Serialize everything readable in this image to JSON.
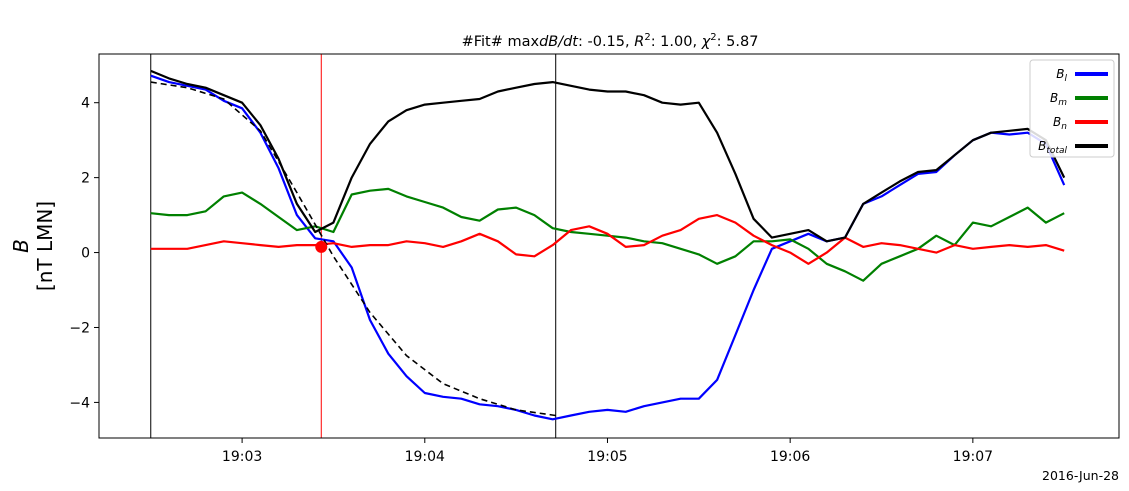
{
  "chart_data": {
    "type": "line",
    "title_parts": {
      "prefix": "#Fit# max",
      "dbdt": "dB/dt",
      "after_dbdt": ": -0.15, ",
      "r": "R",
      "r_sup": "2",
      "after_r": ": 1.00, ",
      "chi": "χ",
      "chi_sup": "2",
      "after_chi": ": 5.87"
    },
    "ylabel_var": "B",
    "ylabel_units": "[nT LMN]",
    "date_label": "2016-Jun-28",
    "ylim": [
      -4.95,
      5.3
    ],
    "xlim": [
      "19:02:13",
      "19:07:48"
    ],
    "yticks": [
      4,
      2,
      0,
      -2,
      -4
    ],
    "ytick_labels": [
      "4",
      "2",
      "0",
      "−2",
      "−4"
    ],
    "xticks": [
      "19:03",
      "19:04",
      "19:05",
      "19:06",
      "19:07"
    ],
    "grid": false,
    "legend_position": "top-right",
    "vertical_lines": [
      {
        "t": "19:02:30",
        "color": "#000000"
      },
      {
        "t": "19:03:26",
        "color": "#ff0000"
      },
      {
        "t": "19:04:43",
        "color": "#000000"
      }
    ],
    "marker": {
      "t": "19:03:26",
      "value": 0.15,
      "color": "#ff0000"
    },
    "series": [
      {
        "name": "Bl",
        "label_main": "B",
        "label_sub": "l",
        "color": "#0000ff",
        "points": [
          [
            "19:02:30",
            4.72
          ],
          [
            "19:02:36",
            4.55
          ],
          [
            "19:02:42",
            4.45
          ],
          [
            "19:02:48",
            4.35
          ],
          [
            "19:02:54",
            4.05
          ],
          [
            "19:03:00",
            3.85
          ],
          [
            "19:03:06",
            3.2
          ],
          [
            "19:03:12",
            2.25
          ],
          [
            "19:03:18",
            1.0
          ],
          [
            "19:03:24",
            0.38
          ],
          [
            "19:03:30",
            0.3
          ],
          [
            "19:03:36",
            -0.4
          ],
          [
            "19:03:42",
            -1.8
          ],
          [
            "19:03:48",
            -2.7
          ],
          [
            "19:03:54",
            -3.3
          ],
          [
            "19:04:00",
            -3.75
          ],
          [
            "19:04:06",
            -3.85
          ],
          [
            "19:04:12",
            -3.9
          ],
          [
            "19:04:18",
            -4.05
          ],
          [
            "19:04:24",
            -4.1
          ],
          [
            "19:04:30",
            -4.2
          ],
          [
            "19:04:36",
            -4.35
          ],
          [
            "19:04:42",
            -4.45
          ],
          [
            "19:04:48",
            -4.35
          ],
          [
            "19:04:54",
            -4.25
          ],
          [
            "19:05:00",
            -4.2
          ],
          [
            "19:05:06",
            -4.25
          ],
          [
            "19:05:12",
            -4.1
          ],
          [
            "19:05:18",
            -4.0
          ],
          [
            "19:05:24",
            -3.9
          ],
          [
            "19:05:30",
            -3.9
          ],
          [
            "19:05:36",
            -3.4
          ],
          [
            "19:05:42",
            -2.2
          ],
          [
            "19:05:48",
            -1.0
          ],
          [
            "19:05:54",
            0.1
          ],
          [
            "19:06:00",
            0.3
          ],
          [
            "19:06:06",
            0.5
          ],
          [
            "19:06:12",
            0.3
          ],
          [
            "19:06:18",
            0.4
          ],
          [
            "19:06:24",
            1.3
          ],
          [
            "19:06:30",
            1.5
          ],
          [
            "19:06:36",
            1.8
          ],
          [
            "19:06:42",
            2.1
          ],
          [
            "19:06:48",
            2.15
          ],
          [
            "19:06:54",
            2.6
          ],
          [
            "19:07:00",
            3.0
          ],
          [
            "19:07:06",
            3.2
          ],
          [
            "19:07:12",
            3.15
          ],
          [
            "19:07:18",
            3.2
          ],
          [
            "19:07:24",
            2.9
          ],
          [
            "19:07:30",
            1.8
          ]
        ]
      },
      {
        "name": "Bm",
        "label_main": "B",
        "label_sub": "m",
        "color": "#008000",
        "points": [
          [
            "19:02:30",
            1.05
          ],
          [
            "19:02:36",
            1.0
          ],
          [
            "19:02:42",
            1.0
          ],
          [
            "19:02:48",
            1.1
          ],
          [
            "19:02:54",
            1.5
          ],
          [
            "19:03:00",
            1.6
          ],
          [
            "19:03:06",
            1.3
          ],
          [
            "19:03:12",
            0.95
          ],
          [
            "19:03:18",
            0.6
          ],
          [
            "19:03:24",
            0.7
          ],
          [
            "19:03:30",
            0.55
          ],
          [
            "19:03:36",
            1.55
          ],
          [
            "19:03:42",
            1.65
          ],
          [
            "19:03:48",
            1.7
          ],
          [
            "19:03:54",
            1.5
          ],
          [
            "19:04:00",
            1.35
          ],
          [
            "19:04:06",
            1.2
          ],
          [
            "19:04:12",
            0.95
          ],
          [
            "19:04:18",
            0.85
          ],
          [
            "19:04:24",
            1.15
          ],
          [
            "19:04:30",
            1.2
          ],
          [
            "19:04:36",
            1.0
          ],
          [
            "19:04:42",
            0.65
          ],
          [
            "19:04:48",
            0.55
          ],
          [
            "19:04:54",
            0.5
          ],
          [
            "19:05:00",
            0.45
          ],
          [
            "19:05:06",
            0.4
          ],
          [
            "19:05:12",
            0.3
          ],
          [
            "19:05:18",
            0.25
          ],
          [
            "19:05:24",
            0.1
          ],
          [
            "19:05:30",
            -0.05
          ],
          [
            "19:05:36",
            -0.3
          ],
          [
            "19:05:42",
            -0.1
          ],
          [
            "19:05:48",
            0.3
          ],
          [
            "19:05:54",
            0.3
          ],
          [
            "19:06:00",
            0.35
          ],
          [
            "19:06:06",
            0.1
          ],
          [
            "19:06:12",
            -0.3
          ],
          [
            "19:06:18",
            -0.5
          ],
          [
            "19:06:24",
            -0.75
          ],
          [
            "19:06:30",
            -0.3
          ],
          [
            "19:06:36",
            -0.1
          ],
          [
            "19:06:42",
            0.1
          ],
          [
            "19:06:48",
            0.45
          ],
          [
            "19:06:54",
            0.2
          ],
          [
            "19:07:00",
            0.8
          ],
          [
            "19:07:06",
            0.7
          ],
          [
            "19:07:12",
            0.95
          ],
          [
            "19:07:18",
            1.2
          ],
          [
            "19:07:24",
            0.8
          ],
          [
            "19:07:30",
            1.05
          ]
        ]
      },
      {
        "name": "Bn",
        "label_main": "B",
        "label_sub": "n",
        "color": "#ff0000",
        "points": [
          [
            "19:02:30",
            0.1
          ],
          [
            "19:02:36",
            0.1
          ],
          [
            "19:02:42",
            0.1
          ],
          [
            "19:02:48",
            0.2
          ],
          [
            "19:02:54",
            0.3
          ],
          [
            "19:03:00",
            0.25
          ],
          [
            "19:03:06",
            0.2
          ],
          [
            "19:03:12",
            0.15
          ],
          [
            "19:03:18",
            0.2
          ],
          [
            "19:03:24",
            0.2
          ],
          [
            "19:03:30",
            0.25
          ],
          [
            "19:03:36",
            0.15
          ],
          [
            "19:03:42",
            0.2
          ],
          [
            "19:03:48",
            0.2
          ],
          [
            "19:03:54",
            0.3
          ],
          [
            "19:04:00",
            0.25
          ],
          [
            "19:04:06",
            0.15
          ],
          [
            "19:04:12",
            0.3
          ],
          [
            "19:04:18",
            0.5
          ],
          [
            "19:04:24",
            0.3
          ],
          [
            "19:04:30",
            -0.05
          ],
          [
            "19:04:36",
            -0.1
          ],
          [
            "19:04:42",
            0.2
          ],
          [
            "19:04:48",
            0.6
          ],
          [
            "19:04:54",
            0.7
          ],
          [
            "19:05:00",
            0.5
          ],
          [
            "19:05:06",
            0.15
          ],
          [
            "19:05:12",
            0.2
          ],
          [
            "19:05:18",
            0.45
          ],
          [
            "19:05:24",
            0.6
          ],
          [
            "19:05:30",
            0.9
          ],
          [
            "19:05:36",
            1.0
          ],
          [
            "19:05:42",
            0.8
          ],
          [
            "19:05:48",
            0.45
          ],
          [
            "19:05:54",
            0.2
          ],
          [
            "19:06:00",
            0.0
          ],
          [
            "19:06:06",
            -0.3
          ],
          [
            "19:06:12",
            0.0
          ],
          [
            "19:06:18",
            0.4
          ],
          [
            "19:06:24",
            0.15
          ],
          [
            "19:06:30",
            0.25
          ],
          [
            "19:06:36",
            0.2
          ],
          [
            "19:06:42",
            0.1
          ],
          [
            "19:06:48",
            0.0
          ],
          [
            "19:06:54",
            0.2
          ],
          [
            "19:07:00",
            0.1
          ],
          [
            "19:07:06",
            0.15
          ],
          [
            "19:07:12",
            0.2
          ],
          [
            "19:07:18",
            0.15
          ],
          [
            "19:07:24",
            0.2
          ],
          [
            "19:07:30",
            0.05
          ]
        ]
      },
      {
        "name": "Btotal",
        "label_main": "B",
        "label_sub": "total",
        "color": "#000000",
        "points": [
          [
            "19:02:30",
            4.85
          ],
          [
            "19:02:36",
            4.65
          ],
          [
            "19:02:42",
            4.5
          ],
          [
            "19:02:48",
            4.4
          ],
          [
            "19:02:54",
            4.2
          ],
          [
            "19:03:00",
            4.0
          ],
          [
            "19:03:06",
            3.4
          ],
          [
            "19:03:12",
            2.5
          ],
          [
            "19:03:18",
            1.3
          ],
          [
            "19:03:24",
            0.55
          ],
          [
            "19:03:30",
            0.8
          ],
          [
            "19:03:36",
            2.0
          ],
          [
            "19:03:42",
            2.9
          ],
          [
            "19:03:48",
            3.5
          ],
          [
            "19:03:54",
            3.8
          ],
          [
            "19:04:00",
            3.95
          ],
          [
            "19:04:06",
            4.0
          ],
          [
            "19:04:12",
            4.05
          ],
          [
            "19:04:18",
            4.1
          ],
          [
            "19:04:24",
            4.3
          ],
          [
            "19:04:30",
            4.4
          ],
          [
            "19:04:36",
            4.5
          ],
          [
            "19:04:42",
            4.55
          ],
          [
            "19:04:48",
            4.45
          ],
          [
            "19:04:54",
            4.35
          ],
          [
            "19:05:00",
            4.3
          ],
          [
            "19:05:06",
            4.3
          ],
          [
            "19:05:12",
            4.2
          ],
          [
            "19:05:18",
            4.0
          ],
          [
            "19:05:24",
            3.95
          ],
          [
            "19:05:30",
            4.0
          ],
          [
            "19:05:36",
            3.2
          ],
          [
            "19:05:42",
            2.1
          ],
          [
            "19:05:48",
            0.9
          ],
          [
            "19:05:54",
            0.4
          ],
          [
            "19:06:00",
            0.5
          ],
          [
            "19:06:06",
            0.6
          ],
          [
            "19:06:12",
            0.3
          ],
          [
            "19:06:18",
            0.4
          ],
          [
            "19:06:24",
            1.3
          ],
          [
            "19:06:30",
            1.6
          ],
          [
            "19:06:36",
            1.9
          ],
          [
            "19:06:42",
            2.15
          ],
          [
            "19:06:48",
            2.2
          ],
          [
            "19:06:54",
            2.6
          ],
          [
            "19:07:00",
            3.0
          ],
          [
            "19:07:06",
            3.2
          ],
          [
            "19:07:12",
            3.25
          ],
          [
            "19:07:18",
            3.3
          ],
          [
            "19:07:24",
            3.0
          ],
          [
            "19:07:30",
            2.0
          ]
        ]
      },
      {
        "name": "fit",
        "color": "#000000",
        "dashed": true,
        "points": [
          [
            "19:02:30",
            4.55
          ],
          [
            "19:02:42",
            4.4
          ],
          [
            "19:02:54",
            4.1
          ],
          [
            "19:03:06",
            3.25
          ],
          [
            "19:03:18",
            1.6
          ],
          [
            "19:03:30",
            -0.1
          ],
          [
            "19:03:42",
            -1.6
          ],
          [
            "19:03:54",
            -2.75
          ],
          [
            "19:04:06",
            -3.5
          ],
          [
            "19:04:18",
            -3.9
          ],
          [
            "19:04:30",
            -4.2
          ],
          [
            "19:04:43",
            -4.35
          ]
        ]
      }
    ]
  }
}
